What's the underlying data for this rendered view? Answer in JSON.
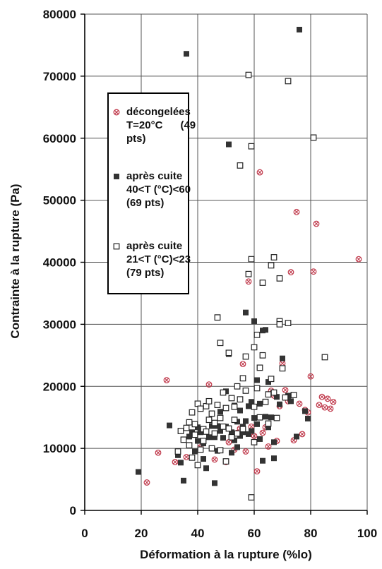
{
  "chart_data": {
    "type": "scatter",
    "title": "",
    "xlabel": "Déformation à la rupture (%lo)",
    "ylabel": "Contrainte à la rupture (Pa)",
    "xlim": [
      0,
      100
    ],
    "ylim": [
      0,
      80000
    ],
    "x_ticks": [
      0,
      20,
      40,
      60,
      80,
      100
    ],
    "y_ticks": [
      0,
      10000,
      20000,
      30000,
      40000,
      50000,
      60000,
      70000,
      80000
    ],
    "x_tick_labels": [
      "0",
      "20",
      "40",
      "60",
      "80",
      "100"
    ],
    "y_tick_labels": [
      "0",
      "10000",
      "20000",
      "30000",
      "40000",
      "50000",
      "60000",
      "70000",
      "80000"
    ],
    "grid": true,
    "legend_position": "upper-left",
    "series": [
      {
        "name": "décongelées T=20°C (49 pts)",
        "label_lines": [
          "décongelées",
          "T=20°C      (49",
          "pts)"
        ],
        "marker": "circle-cross",
        "color": "#c0394b",
        "points": [
          [
            22,
            4500
          ],
          [
            26,
            9300
          ],
          [
            29,
            21000
          ],
          [
            32,
            7800
          ],
          [
            36,
            8600
          ],
          [
            38,
            12300
          ],
          [
            41,
            10200
          ],
          [
            44,
            20300
          ],
          [
            46,
            8200
          ],
          [
            48,
            13500
          ],
          [
            50,
            7800
          ],
          [
            51,
            11000
          ],
          [
            53,
            9800
          ],
          [
            54,
            12500
          ],
          [
            55,
            13200
          ],
          [
            56,
            23600
          ],
          [
            57,
            9500
          ],
          [
            58,
            36900
          ],
          [
            59,
            13500
          ],
          [
            60,
            12000
          ],
          [
            61,
            6300
          ],
          [
            62,
            54500
          ],
          [
            63,
            12500
          ],
          [
            64,
            13400
          ],
          [
            65,
            10300
          ],
          [
            66,
            19300
          ],
          [
            67,
            18500
          ],
          [
            68,
            11200
          ],
          [
            69,
            16800
          ],
          [
            70,
            23700
          ],
          [
            71,
            19400
          ],
          [
            72,
            17600
          ],
          [
            73,
            38400
          ],
          [
            74,
            11300
          ],
          [
            75,
            48100
          ],
          [
            76,
            17200
          ],
          [
            77,
            12300
          ],
          [
            78,
            16200
          ],
          [
            79,
            15800
          ],
          [
            80,
            21600
          ],
          [
            81,
            38500
          ],
          [
            82,
            46200
          ],
          [
            83,
            17000
          ],
          [
            84,
            18300
          ],
          [
            85,
            16600
          ],
          [
            86,
            18000
          ],
          [
            87,
            16400
          ],
          [
            88,
            17500
          ],
          [
            97,
            40500
          ]
        ]
      },
      {
        "name": "après cuite 40<T (°C)<60 (69 pts)",
        "label_lines": [
          "après cuite",
          "40<T (°C)<60",
          "(69 pts)"
        ],
        "marker": "square-filled",
        "color": "#333333",
        "points": [
          [
            19,
            6200
          ],
          [
            30,
            13700
          ],
          [
            33,
            8900
          ],
          [
            34,
            7700
          ],
          [
            35,
            4800
          ],
          [
            36,
            73600
          ],
          [
            37,
            11900
          ],
          [
            38,
            12600
          ],
          [
            39,
            9500
          ],
          [
            40,
            13400
          ],
          [
            40,
            11200
          ],
          [
            41,
            12600
          ],
          [
            42,
            8300
          ],
          [
            42,
            10800
          ],
          [
            43,
            6800
          ],
          [
            44,
            11800
          ],
          [
            44,
            14600
          ],
          [
            45,
            13600
          ],
          [
            46,
            4400
          ],
          [
            46,
            11800
          ],
          [
            47,
            9600
          ],
          [
            47,
            13600
          ],
          [
            48,
            12800
          ],
          [
            48,
            15900
          ],
          [
            49,
            11700
          ],
          [
            50,
            13500
          ],
          [
            50,
            19200
          ],
          [
            51,
            59000
          ],
          [
            51,
            25200
          ],
          [
            52,
            12600
          ],
          [
            52,
            9300
          ],
          [
            53,
            16900
          ],
          [
            53,
            11300
          ],
          [
            54,
            14300
          ],
          [
            54,
            10200
          ],
          [
            55,
            16100
          ],
          [
            55,
            12000
          ],
          [
            56,
            13500
          ],
          [
            56,
            12600
          ],
          [
            57,
            31900
          ],
          [
            57,
            14400
          ],
          [
            58,
            12300
          ],
          [
            58,
            16800
          ],
          [
            59,
            17500
          ],
          [
            59,
            12800
          ],
          [
            60,
            30500
          ],
          [
            60,
            14900
          ],
          [
            61,
            13900
          ],
          [
            61,
            21000
          ],
          [
            62,
            17200
          ],
          [
            62,
            11500
          ],
          [
            63,
            8000
          ],
          [
            63,
            29000
          ],
          [
            64,
            29100
          ],
          [
            64,
            15100
          ],
          [
            65,
            20700
          ],
          [
            65,
            13400
          ],
          [
            66,
            15000
          ],
          [
            67,
            11000
          ],
          [
            67,
            8400
          ],
          [
            68,
            18300
          ],
          [
            69,
            17100
          ],
          [
            70,
            24500
          ],
          [
            72,
            18500
          ],
          [
            73,
            17600
          ],
          [
            75,
            11900
          ],
          [
            76,
            77500
          ],
          [
            78,
            16000
          ],
          [
            79,
            14800
          ]
        ]
      },
      {
        "name": "après cuite 21<T (°C)<23 (79 pts)",
        "label_lines": [
          "après cuite",
          "21<T (°C)<23",
          "(79 pts)"
        ],
        "marker": "square-open",
        "color": "#222222",
        "points": [
          [
            33,
            9500
          ],
          [
            34,
            12800
          ],
          [
            35,
            11400
          ],
          [
            36,
            13300
          ],
          [
            37,
            14200
          ],
          [
            37,
            10500
          ],
          [
            38,
            15800
          ],
          [
            38,
            8500
          ],
          [
            39,
            12200
          ],
          [
            39,
            13900
          ],
          [
            40,
            7300
          ],
          [
            40,
            17200
          ],
          [
            41,
            16400
          ],
          [
            41,
            9800
          ],
          [
            42,
            13100
          ],
          [
            42,
            11200
          ],
          [
            43,
            16800
          ],
          [
            43,
            12700
          ],
          [
            44,
            14600
          ],
          [
            44,
            17600
          ],
          [
            45,
            15600
          ],
          [
            45,
            10000
          ],
          [
            46,
            14100
          ],
          [
            46,
            12400
          ],
          [
            47,
            31100
          ],
          [
            47,
            17000
          ],
          [
            48,
            27000
          ],
          [
            48,
            14900
          ],
          [
            48,
            9700
          ],
          [
            49,
            19000
          ],
          [
            49,
            13500
          ],
          [
            50,
            16500
          ],
          [
            50,
            7900
          ],
          [
            51,
            25400
          ],
          [
            51,
            13200
          ],
          [
            52,
            18100
          ],
          [
            52,
            11800
          ],
          [
            53,
            16700
          ],
          [
            53,
            14600
          ],
          [
            54,
            20000
          ],
          [
            54,
            12400
          ],
          [
            55,
            55600
          ],
          [
            55,
            17900
          ],
          [
            56,
            21300
          ],
          [
            56,
            13100
          ],
          [
            57,
            24800
          ],
          [
            57,
            19300
          ],
          [
            58,
            70200
          ],
          [
            58,
            38100
          ],
          [
            59,
            58700
          ],
          [
            59,
            40500
          ],
          [
            59,
            2100
          ],
          [
            60,
            26300
          ],
          [
            60,
            16700
          ],
          [
            60,
            11000
          ],
          [
            61,
            28300
          ],
          [
            61,
            19700
          ],
          [
            62,
            23000
          ],
          [
            62,
            15000
          ],
          [
            63,
            36700
          ],
          [
            63,
            25000
          ],
          [
            64,
            17500
          ],
          [
            65,
            18700
          ],
          [
            65,
            14000
          ],
          [
            66,
            39500
          ],
          [
            66,
            21200
          ],
          [
            67,
            40800
          ],
          [
            67,
            19000
          ],
          [
            68,
            14900
          ],
          [
            69,
            37400
          ],
          [
            69,
            30500
          ],
          [
            69,
            30000
          ],
          [
            70,
            22900
          ],
          [
            71,
            18200
          ],
          [
            72,
            69200
          ],
          [
            72,
            30200
          ],
          [
            74,
            18600
          ],
          [
            81,
            60100
          ],
          [
            85,
            24700
          ]
        ]
      }
    ]
  }
}
